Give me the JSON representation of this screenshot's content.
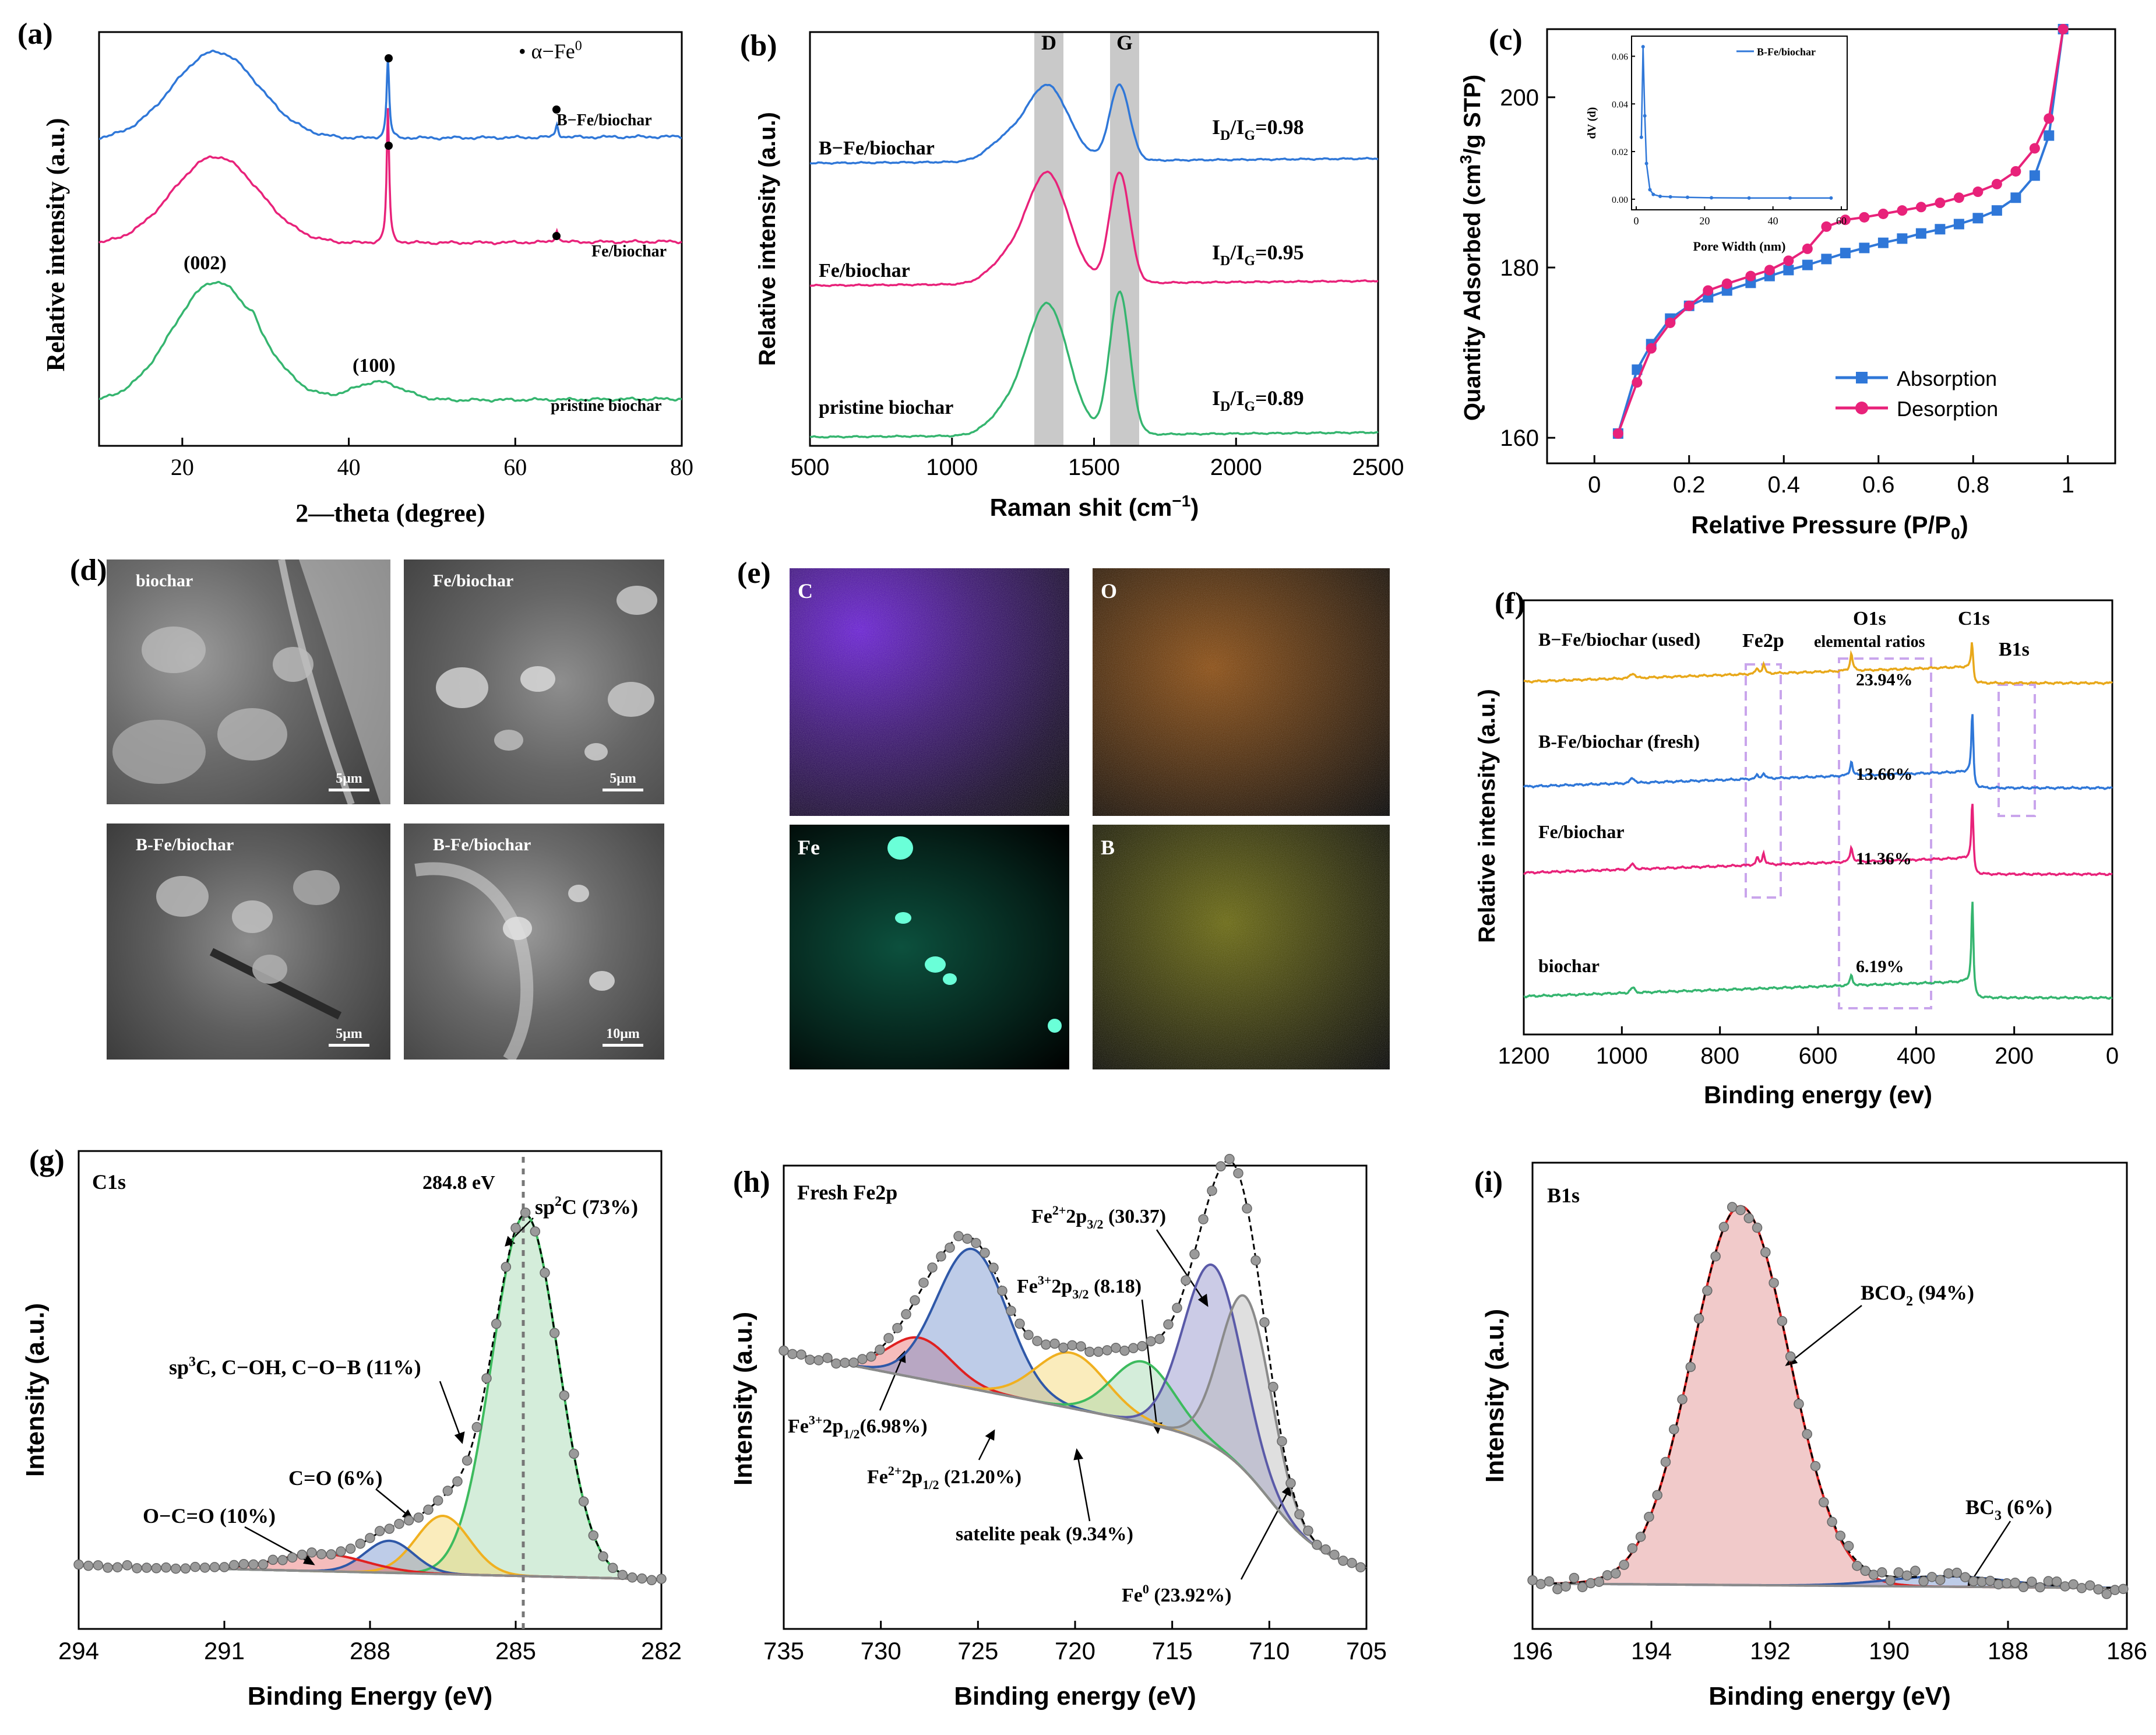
{
  "panels": {
    "a": {
      "label": "(a)",
      "xlabel": "2—theta (degree)",
      "ylabel": "Relative intensity (a.u.)",
      "legend_marker": "• α−Fe",
      "legend_sup": "0",
      "ann_002": "(002)",
      "ann_100": "(100)",
      "series": [
        {
          "label": "B−Fe/biochar",
          "color": "#2f77d8"
        },
        {
          "label": "Fe/biochar",
          "color": "#e8227a"
        },
        {
          "label": "pristine biochar",
          "color": "#35b56f"
        }
      ]
    },
    "b": {
      "label": "(b)",
      "xlabel": "Raman shit (cm",
      "xlabel_sup": "−1",
      "xlabel_end": ")",
      "ylabel": "Relative intensity (a.u.)",
      "band_D": "D",
      "band_G": "G",
      "series": [
        {
          "label": "B−Fe/biochar",
          "ratio": "0.98",
          "color": "#2f77d8"
        },
        {
          "label": "Fe/biochar",
          "ratio": "0.95",
          "color": "#e8227a"
        },
        {
          "label": "pristine biochar",
          "ratio": "0.89",
          "color": "#35b56f"
        }
      ]
    },
    "c": {
      "label": "(c)",
      "xlabel": "Relative Pressure (P/P",
      "xlabel_sub": "0",
      "xlabel_end": ")",
      "ylabel": "Quantity Adsorbed (cm",
      "legend": [
        "Absorption",
        "Desorption"
      ],
      "inset_legend": "B-Fe/biochar",
      "inset_xlabel": "Pore Width (nm)",
      "inset_ylabel": "dV (d)"
    },
    "d": {
      "label": "(d)",
      "images": [
        {
          "name": "biochar",
          "scale": "5μm"
        },
        {
          "name": "Fe/biochar",
          "scale": "5μm"
        },
        {
          "name": "B-Fe/biochar",
          "scale": "5μm"
        },
        {
          "name": "B-Fe/biochar",
          "scale": "10μm"
        }
      ]
    },
    "e": {
      "label": "(e)",
      "maps": [
        {
          "element": "C",
          "color": "#7a1fff"
        },
        {
          "element": "O",
          "color": "#ff8a1a"
        },
        {
          "element": "Fe",
          "color": "#22e6b0"
        },
        {
          "element": "B",
          "color": "#e8e61a"
        }
      ]
    },
    "f": {
      "label": "(f)",
      "xlabel": "Binding energy (ev)",
      "ylabel": "Relative intensity (a.u.)",
      "fe2p": "Fe2p",
      "o1s": "O1s",
      "elemental": "elemental ratios",
      "c1s": "C1s",
      "b1s": "B1s",
      "series": [
        {
          "label": "B−Fe/biochar (used)",
          "ratio": "23.94%",
          "color": "#e8a81a"
        },
        {
          "label": "B-Fe/biochar (fresh)",
          "ratio": "13.66%",
          "color": "#2f77d8"
        },
        {
          "label": "Fe/biochar",
          "ratio": "11.36%",
          "color": "#e8227a"
        },
        {
          "label": "biochar",
          "ratio": "6.19%",
          "color": "#35b56f"
        }
      ]
    },
    "g": {
      "label": "(g)",
      "title": "C1s",
      "xlabel": "Binding Energy (eV)",
      "ylabel": "Intensity (a.u.)",
      "ref_line": "284.8 eV",
      "components": [
        {
          "label": "sp",
          "sup": "2",
          "tail": "C (73%)",
          "color": "#7bc68e"
        },
        {
          "label": "sp",
          "sup": "3",
          "tail": "C, C−OH, C−O−B (11%)",
          "color": "#f0c84a"
        },
        {
          "label": "C=O (6%)",
          "color": "#5a7ab8"
        },
        {
          "label": "O−C=O (10%)",
          "color": "#e04a4a"
        }
      ]
    },
    "h": {
      "label": "(h)",
      "title": "Fresh Fe2p",
      "xlabel": "Binding energy (eV)",
      "ylabel": "Intensity (a.u.)",
      "components": [
        {
          "pre": "Fe",
          "sup": "2+",
          "mid": "2p",
          "sub": "3/2",
          "post": " (30.37)"
        },
        {
          "pre": "Fe",
          "sup": "3+",
          "mid": "2p",
          "sub": "3/2",
          "post": " (8.18)"
        },
        {
          "pre": "Fe",
          "sup": "3+",
          "mid": "2p",
          "sub": "1/2",
          "post": "(6.98%)"
        },
        {
          "pre": "Fe",
          "sup": "2+",
          "mid": "2p",
          "sub": "1/2",
          "post": " (21.20%)"
        },
        {
          "pre": "satelite peak (9.34%)"
        },
        {
          "pre": "Fe",
          "sup": "0",
          "post": " (23.92%)"
        }
      ]
    },
    "i": {
      "label": "(i)",
      "title": "B1s",
      "xlabel": "Binding energy (eV)",
      "ylabel": "Intensity (a.u.)",
      "bco2": "BCO",
      "bco2_sub": "2",
      "bco2_tail": " (94%)",
      "bc3": "BC",
      "bc3_sub": "3",
      "bc3_tail": " (6%)"
    }
  },
  "chart_data": [
    {
      "type": "line",
      "panel": "a",
      "xlabel": "2—theta (degree)",
      "ylabel": "Relative intensity (a.u.)",
      "xlim": [
        10,
        80
      ],
      "xticks": [
        20,
        40,
        60,
        80
      ],
      "series": [
        {
          "name": "B−Fe/biochar",
          "peaks_2theta": [
            24,
            44.7,
            65
          ]
        },
        {
          "name": "Fe/biochar",
          "peaks_2theta": [
            24,
            44.7,
            65
          ]
        },
        {
          "name": "pristine biochar",
          "peaks_2theta": [
            23.5,
            43.5
          ]
        }
      ]
    },
    {
      "type": "line",
      "panel": "b",
      "xlabel": "Raman shit (cm−1)",
      "ylabel": "Relative intensity (a.u.)",
      "xlim": [
        500,
        2500
      ],
      "xticks": [
        500,
        1000,
        1500,
        2000,
        2500
      ],
      "series": [
        {
          "name": "B−Fe/biochar",
          "ID_IG": 0.98,
          "D_band": 1335,
          "G_band": 1590
        },
        {
          "name": "Fe/biochar",
          "ID_IG": 0.95,
          "D_band": 1335,
          "G_band": 1590
        },
        {
          "name": "pristine biochar",
          "ID_IG": 0.89,
          "D_band": 1335,
          "G_band": 1590
        }
      ]
    },
    {
      "type": "line",
      "panel": "c",
      "xlabel": "Relative Pressure (P/P0)",
      "ylabel": "Quantity Adsorbed (cm3/g STP)",
      "xlim": [
        -0.1,
        1.1
      ],
      "ylim": [
        157,
        208
      ],
      "xticks": [
        0.0,
        0.2,
        0.4,
        0.6,
        0.8,
        1.0
      ],
      "yticks": [
        160,
        180,
        200
      ],
      "series": [
        {
          "name": "Absorption",
          "x": [
            0.05,
            0.09,
            0.12,
            0.16,
            0.2,
            0.24,
            0.28,
            0.33,
            0.37,
            0.41,
            0.45,
            0.49,
            0.53,
            0.57,
            0.61,
            0.65,
            0.69,
            0.73,
            0.77,
            0.81,
            0.85,
            0.89,
            0.93,
            0.96,
            0.99
          ],
          "y": [
            160.5,
            168,
            171,
            174,
            175.5,
            176.5,
            177.3,
            178.2,
            179,
            179.7,
            180.3,
            181,
            181.7,
            182.3,
            182.9,
            183.4,
            184,
            184.5,
            185.1,
            185.8,
            186.7,
            188.2,
            190.8,
            195.5,
            208
          ]
        },
        {
          "name": "Desorption",
          "x": [
            0.05,
            0.09,
            0.12,
            0.16,
            0.2,
            0.24,
            0.28,
            0.33,
            0.37,
            0.41,
            0.45,
            0.49,
            0.53,
            0.57,
            0.61,
            0.65,
            0.69,
            0.73,
            0.77,
            0.81,
            0.85,
            0.89,
            0.93,
            0.96,
            0.99
          ],
          "y": [
            160.5,
            166.5,
            170.5,
            173.5,
            175.5,
            177.3,
            178.1,
            179,
            179.7,
            180.8,
            182.2,
            184.8,
            185.6,
            185.9,
            186.3,
            186.7,
            187.1,
            187.6,
            188.2,
            188.9,
            189.8,
            191.3,
            194,
            197.5,
            208
          ]
        }
      ],
      "inset": {
        "name": "B-Fe/biochar",
        "xlabel": "Pore Width (nm)",
        "ylabel": "dV (d)",
        "xlim": [
          0,
          60
        ],
        "ylim": [
          -0.002,
          0.066
        ],
        "xticks": [
          0,
          20,
          40,
          60
        ],
        "yticks": [
          0.0,
          0.02,
          0.04,
          0.06
        ],
        "x": [
          1.5,
          2.0,
          2.5,
          3.0,
          4.0,
          5.0,
          7.0,
          10.0,
          15.0,
          22.0,
          33.0,
          45.0,
          57.0
        ],
        "y": [
          0.026,
          0.064,
          0.035,
          0.015,
          0.004,
          0.002,
          0.0012,
          0.001,
          0.0008,
          0.0006,
          0.0005,
          0.0005,
          0.0005
        ]
      }
    },
    {
      "type": "line",
      "panel": "f",
      "xlabel": "Binding energy (ev)",
      "ylabel": "Relative intensity (a.u.)",
      "xlim": [
        1200,
        0
      ],
      "xticks": [
        1200,
        1000,
        800,
        600,
        400,
        200,
        0
      ],
      "series": [
        {
          "name": "B−Fe/biochar (used)",
          "O_ratio_pct": 23.94
        },
        {
          "name": "B-Fe/biochar (fresh)",
          "O_ratio_pct": 13.66
        },
        {
          "name": "Fe/biochar",
          "O_ratio_pct": 11.36
        },
        {
          "name": "biochar",
          "O_ratio_pct": 6.19
        }
      ]
    },
    {
      "type": "line",
      "panel": "g",
      "xlabel": "Binding Energy (eV)",
      "ylabel": "Intensity (a.u.)",
      "xlim": [
        294,
        282
      ],
      "xticks": [
        294,
        291,
        288,
        285,
        282
      ],
      "components": [
        {
          "name": "sp2C",
          "center_eV": 284.8,
          "fraction_pct": 73
        },
        {
          "name": "sp3C, C−OH, C−O−B",
          "center_eV": 286.5,
          "fraction_pct": 11
        },
        {
          "name": "C=O",
          "center_eV": 287.6,
          "fraction_pct": 6
        },
        {
          "name": "O−C=O",
          "center_eV": 289.0,
          "fraction_pct": 10
        }
      ]
    },
    {
      "type": "line",
      "panel": "h",
      "xlabel": "Binding energy (eV)",
      "ylabel": "Intensity (a.u.)",
      "xlim": [
        735,
        705
      ],
      "xticks": [
        735,
        730,
        725,
        720,
        715,
        710,
        705
      ],
      "components": [
        {
          "name": "Fe2+ 2p3/2",
          "center_eV": 712.8,
          "fraction_pct": 30.37
        },
        {
          "name": "Fe3+ 2p3/2",
          "center_eV": 716.5,
          "fraction_pct": 8.18
        },
        {
          "name": "Fe3+ 2p1/2",
          "center_eV": 728.0,
          "fraction_pct": 6.98
        },
        {
          "name": "Fe2+ 2p1/2",
          "center_eV": 725.3,
          "fraction_pct": 21.2
        },
        {
          "name": "satelite peak",
          "center_eV": 720.2,
          "fraction_pct": 9.34
        },
        {
          "name": "Fe0",
          "center_eV": 711.2,
          "fraction_pct": 23.92
        }
      ]
    },
    {
      "type": "line",
      "panel": "i",
      "xlabel": "Binding energy (eV)",
      "ylabel": "Intensity (a.u.)",
      "xlim": [
        196,
        186
      ],
      "xticks": [
        196,
        194,
        192,
        190,
        188,
        186
      ],
      "components": [
        {
          "name": "BCO2",
          "center_eV": 192.5,
          "fraction_pct": 94
        },
        {
          "name": "BC3",
          "center_eV": 189.0,
          "fraction_pct": 6
        }
      ]
    }
  ]
}
